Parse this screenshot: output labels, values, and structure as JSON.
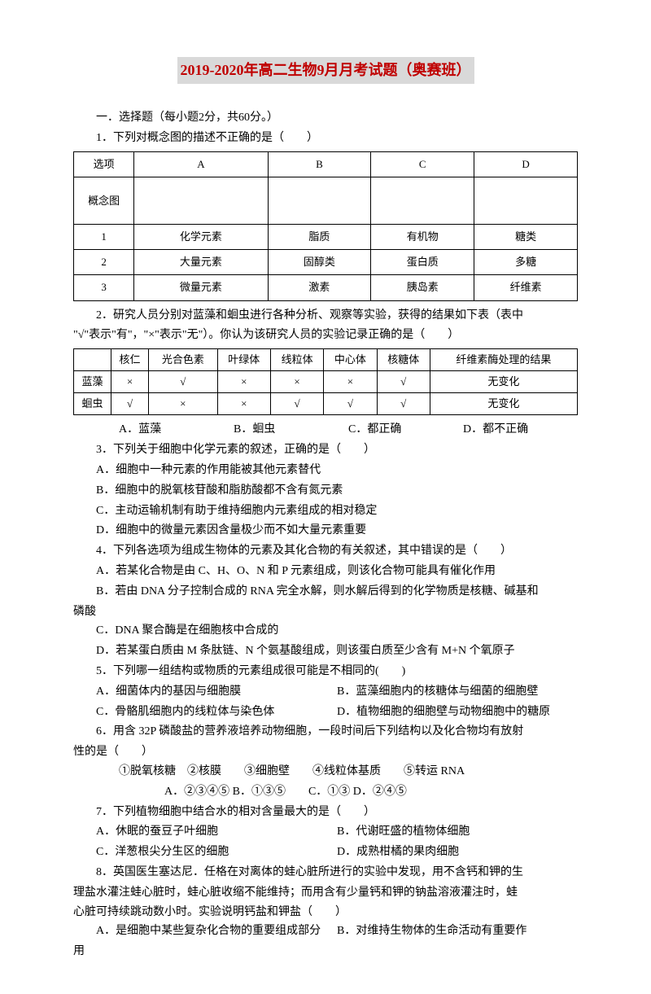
{
  "title": "2019-2020年高二生物9月月考试题（奥赛班）",
  "section1": "一．选择题（每小题2分，共60分。）",
  "q1": {
    "stem": "1．下列对概念图的描述不正确的是（　　）",
    "headers": [
      "选项",
      "A",
      "B",
      "C",
      "D"
    ],
    "rowLabels": [
      "概念图",
      "1",
      "2",
      "3"
    ],
    "rows": {
      "r1": [
        "化学元素",
        "脂质",
        "有机物",
        "糖类"
      ],
      "r2": [
        "大量元素",
        "固醇类",
        "蛋白质",
        "多糖"
      ],
      "r3": [
        "微量元素",
        "激素",
        "胰岛素",
        "纤维素"
      ]
    }
  },
  "q2": {
    "stem1": "2．研究人员分别对蓝藻和蛔虫进行各种分析、观察等实验，获得的结果如下表（表中",
    "stem2": "\"√\"表示\"有\"，\"×\"表示\"无\"）。你认为该研究人员的实验记录正确的是（　　）",
    "headers": [
      "",
      "核仁",
      "光合色素",
      "叶绿体",
      "线粒体",
      "中心体",
      "核糖体",
      "纤维素酶处理的结果"
    ],
    "row1": [
      "蓝藻",
      "×",
      "√",
      "×",
      "×",
      "×",
      "√",
      "无变化"
    ],
    "row2": [
      "蛔虫",
      "√",
      "×",
      "×",
      "√",
      "√",
      "√",
      "无变化"
    ],
    "opts": {
      "a": "A．蓝藻",
      "b": "B．蛔虫",
      "c": "C．都正确",
      "d": "D．都不正确"
    }
  },
  "q3": {
    "stem": "3．下列关于细胞中化学元素的叙述，正确的是（　　）",
    "a": "A．细胞中一种元素的作用能被其他元素替代",
    "b": "B．细胞中的脱氧核苷酸和脂肪酸都不含有氮元素",
    "c": "C．主动运输机制有助于维持细胞内元素组成的相对稳定",
    "d": "D．细胞中的微量元素因含量极少而不如大量元素重要"
  },
  "q4": {
    "stem": "4．下列各选项为组成生物体的元素及其化合物的有关叙述，其中错误的是（　　）",
    "a": "A．若某化合物是由 C、H、O、N 和 P 元素组成，则该化合物可能具有催化作用",
    "b1": "B．若由 DNA 分子控制合成的 RNA 完全水解，则水解后得到的化学物质是核糖、碱基和",
    "b2": "磷酸",
    "c": "C．DNA 聚合酶是在细胞核中合成的",
    "d": "D．若某蛋白质由 M 条肽链、N 个氨基酸组成，则该蛋白质至少含有 M+N 个氧原子"
  },
  "q5": {
    "stem": "5．下列哪一组结构或物质的元素组成很可能是不相同的(　　)",
    "a": "A．细菌体内的基因与细胞膜",
    "b": "B．蓝藻细胞内的核糖体与细菌的细胞壁",
    "c": "C．骨骼肌细胞内的线粒体与染色体",
    "d": "D．植物细胞的细胞壁与动物细胞中的糖原"
  },
  "q6": {
    "stem1": "6．用含 32P 磷酸盐的营养液培养动物细胞，一段时间后下列结构以及化合物均有放射",
    "stem2": "性的是（　　）",
    "items": "①脱氧核糖　②核膜　　③细胞壁　　④线粒体基质　　⑤转运 RNA",
    "opts": "A．②③④⑤  B．①③⑤　　C．①③  D．②④⑤"
  },
  "q7": {
    "stem": "7．下列植物细胞中结合水的相对含量最大的是（　　）",
    "a": "A．休眠的蚕豆子叶细胞",
    "b": "B．代谢旺盛的植物体细胞",
    "c": "C．洋葱根尖分生区的细胞",
    "d": "D．成熟柑橘的果肉细胞"
  },
  "q8": {
    "stem1": "8．英国医生塞达尼．任格在对离体的蛙心脏所进行的实验中发现，用不含钙和钾的生",
    "stem2": "理盐水灌注蛙心脏时，蛙心脏收缩不能维持；而用含有少量钙和钾的钠盐溶液灌注时，蛙",
    "stem3": "心脏可持续跳动数小时。实验说明钙盐和钾盐（　　）",
    "a": "A．是细胞中某些复杂化合物的重要组成部分",
    "b1": "B．对维持生物体的生命活动有重要作",
    "b2": "用"
  }
}
